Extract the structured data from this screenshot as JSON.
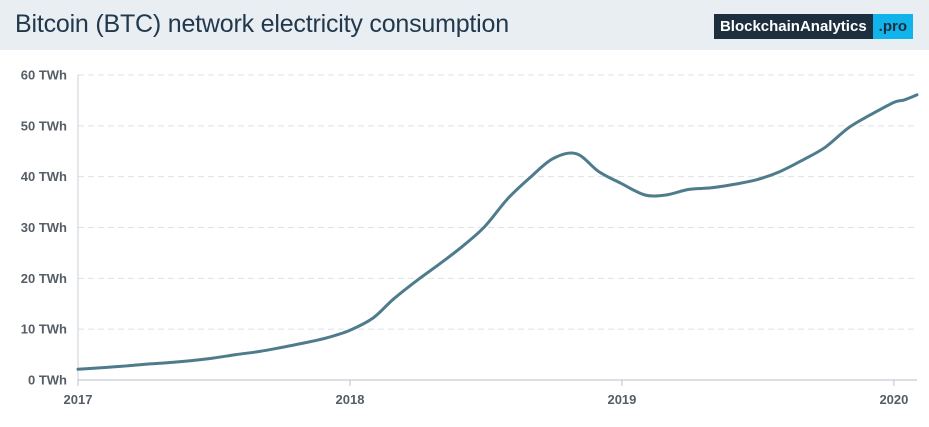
{
  "header": {
    "title": "Bitcoin (BTC) network electricity consumption",
    "brand_main": "BlockchainAnalytics",
    "brand_suffix": ".pro"
  },
  "colors": {
    "header_bg": "#e9eef2",
    "title": "#22384c",
    "line": "#4e7c8c",
    "grid": "#dde2e6",
    "brand_dark": "#1d2e3f",
    "brand_accent": "#11b4ea"
  },
  "chart_data": {
    "type": "line",
    "title": "Bitcoin (BTC) network electricity consumption",
    "xlabel": "",
    "ylabel": "",
    "x_ticks": [
      "2017",
      "2018",
      "2019",
      "2020"
    ],
    "y_ticks": [
      "0 TWh",
      "10 TWh",
      "20 TWh",
      "30 TWh",
      "40 TWh",
      "50 TWh",
      "60 TWh"
    ],
    "xlim": [
      "2017-01-01",
      "2020-02-01"
    ],
    "ylim": [
      0,
      60
    ],
    "grid": "horizontal dashed",
    "series": [
      {
        "unit": "TWh",
        "points": [
          {
            "x": "2017-01-01",
            "y": 2.1
          },
          {
            "x": "2017-02-01",
            "y": 2.4
          },
          {
            "x": "2017-03-01",
            "y": 2.7
          },
          {
            "x": "2017-04-01",
            "y": 3.1
          },
          {
            "x": "2017-05-01",
            "y": 3.4
          },
          {
            "x": "2017-06-01",
            "y": 3.8
          },
          {
            "x": "2017-07-01",
            "y": 4.3
          },
          {
            "x": "2017-08-01",
            "y": 5.0
          },
          {
            "x": "2017-09-01",
            "y": 5.6
          },
          {
            "x": "2017-10-01",
            "y": 6.4
          },
          {
            "x": "2017-11-01",
            "y": 7.3
          },
          {
            "x": "2017-12-01",
            "y": 8.3
          },
          {
            "x": "2018-01-01",
            "y": 9.8
          },
          {
            "x": "2018-02-01",
            "y": 12.2
          },
          {
            "x": "2018-03-01",
            "y": 16.0
          },
          {
            "x": "2018-04-01",
            "y": 19.6
          },
          {
            "x": "2018-05-01",
            "y": 22.8
          },
          {
            "x": "2018-06-01",
            "y": 26.3
          },
          {
            "x": "2018-07-01",
            "y": 30.2
          },
          {
            "x": "2018-08-01",
            "y": 35.7
          },
          {
            "x": "2018-09-01",
            "y": 40.0
          },
          {
            "x": "2018-10-01",
            "y": 43.6
          },
          {
            "x": "2018-11-01",
            "y": 44.5
          },
          {
            "x": "2018-12-01",
            "y": 41.0
          },
          {
            "x": "2019-01-01",
            "y": 38.6
          },
          {
            "x": "2019-02-01",
            "y": 36.4
          },
          {
            "x": "2019-03-01",
            "y": 36.4
          },
          {
            "x": "2019-04-01",
            "y": 37.5
          },
          {
            "x": "2019-05-01",
            "y": 37.8
          },
          {
            "x": "2019-06-01",
            "y": 38.5
          },
          {
            "x": "2019-07-01",
            "y": 39.4
          },
          {
            "x": "2019-08-01",
            "y": 41.0
          },
          {
            "x": "2019-09-01",
            "y": 43.3
          },
          {
            "x": "2019-10-01",
            "y": 45.8
          },
          {
            "x": "2019-11-01",
            "y": 49.6
          },
          {
            "x": "2019-12-01",
            "y": 52.2
          },
          {
            "x": "2020-01-01",
            "y": 54.6
          },
          {
            "x": "2020-01-15",
            "y": 55.1
          },
          {
            "x": "2020-02-01",
            "y": 56.1
          }
        ]
      }
    ]
  }
}
